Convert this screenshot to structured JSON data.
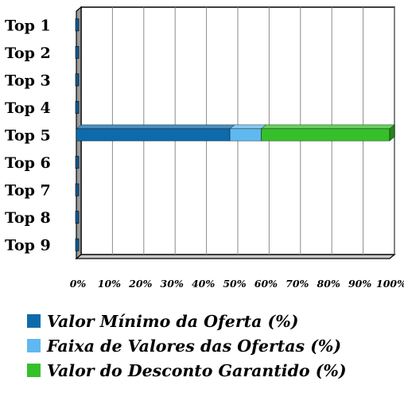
{
  "chart_data": {
    "type": "bar",
    "orientation": "horizontal",
    "stacked": true,
    "style": "3d",
    "categories": [
      "Top 1",
      "Top 2",
      "Top 3",
      "Top 4",
      "Top 5",
      "Top 6",
      "Top 7",
      "Top 8",
      "Top 9"
    ],
    "series": [
      {
        "name": "Valor Mínimo da Oferta (%)",
        "color": "#0e6bab",
        "values": [
          0,
          0,
          0,
          0,
          49,
          0,
          0,
          0,
          0
        ]
      },
      {
        "name": "Faixa de Valores das Ofertas (%)",
        "color": "#5fb8ef",
        "values": [
          0,
          0,
          0,
          0,
          10,
          0,
          0,
          0,
          0
        ]
      },
      {
        "name": "Valor do Desconto Garantido (%)",
        "color": "#35c02a",
        "values": [
          0,
          0,
          0,
          0,
          41,
          0,
          0,
          0,
          0
        ]
      }
    ],
    "x_ticks": [
      "0%",
      "10%",
      "20%",
      "30%",
      "40%",
      "50%",
      "60%",
      "70%",
      "80%",
      "90%",
      "100%"
    ],
    "xlim": [
      0,
      100
    ],
    "grid": true,
    "legend_position": "bottom",
    "title": "",
    "xlabel": "",
    "ylabel": ""
  }
}
